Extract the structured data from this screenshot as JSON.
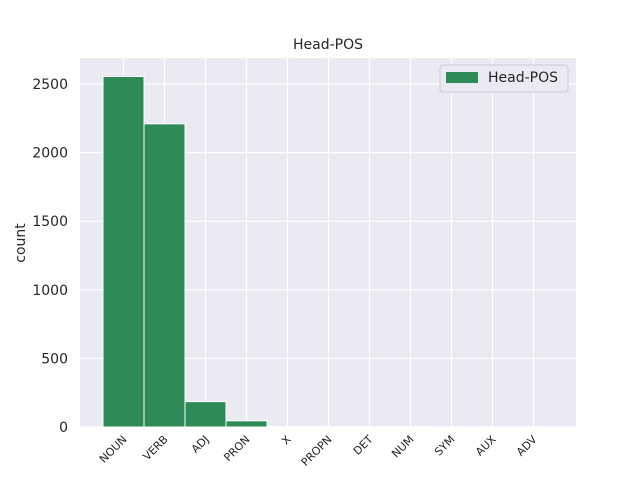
{
  "chart_data": {
    "type": "bar",
    "title": "Head-POS",
    "xlabel": "",
    "ylabel": "count",
    "categories": [
      "NOUN",
      "VERB",
      "ADJ",
      "PRON",
      "X",
      "PROPN",
      "DET",
      "NUM",
      "SYM",
      "AUX",
      "ADV"
    ],
    "series": [
      {
        "name": "Head-POS",
        "values": [
          2555,
          2210,
          185,
          45,
          3,
          2,
          2,
          2,
          1,
          1,
          1
        ],
        "color": "#2e8b57"
      }
    ],
    "ylim": [
      0,
      2690
    ],
    "yticks": [
      0,
      500,
      1000,
      1500,
      2000,
      2500
    ],
    "grid": true,
    "legend": "top-right",
    "background": "#eaeaf2"
  }
}
